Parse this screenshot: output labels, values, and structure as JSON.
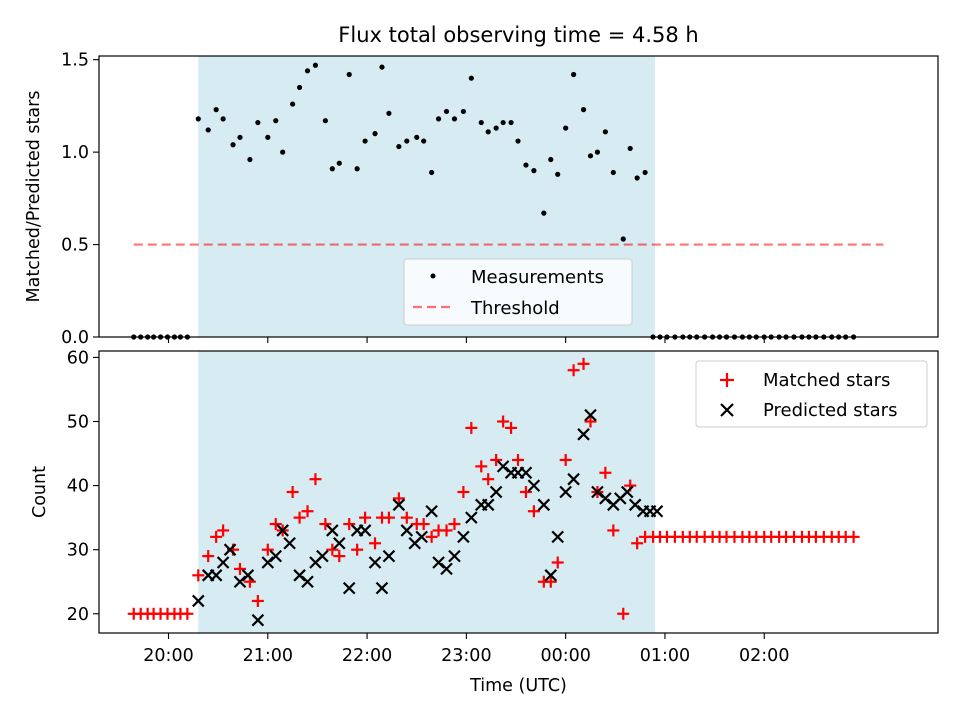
{
  "colors": {
    "band": "#add8e6",
    "threshold": "#ff0000",
    "matched": "#ff0000",
    "predicted": "#000000",
    "measurement": "#000000"
  },
  "chart_data": [
    {
      "type": "scatter",
      "title": "Flux total observing time = 4.58 h",
      "xlabel": "",
      "ylabel": "Matched/Predicted stars",
      "xlim": [
        -0.7,
        7.75
      ],
      "ylim": [
        0,
        1.52
      ],
      "yticks": [
        0.0,
        0.5,
        1.0,
        1.5
      ],
      "ytick_labels": [
        "0.0",
        "0.5",
        "1.0",
        "1.5"
      ],
      "xticks": [
        0,
        1,
        2,
        3,
        4,
        5,
        6
      ],
      "observing_band": [
        0.3,
        4.9
      ],
      "legend": {
        "position": "lower-center",
        "entries": [
          "Measurements",
          "Threshold"
        ]
      },
      "threshold": {
        "name": "Threshold",
        "value": 0.5,
        "x": [
          -0.35,
          7.2
        ]
      },
      "series": [
        {
          "name": "Measurements",
          "x": [
            -0.35,
            -0.28,
            -0.21,
            -0.15,
            -0.08,
            -0.01,
            0.06,
            0.12,
            0.19,
            0.3,
            0.4,
            0.48,
            0.55,
            0.65,
            0.72,
            0.82,
            0.9,
            1.0,
            1.08,
            1.15,
            1.25,
            1.32,
            1.4,
            1.48,
            1.58,
            1.65,
            1.72,
            1.82,
            1.9,
            1.98,
            2.08,
            2.15,
            2.22,
            2.32,
            2.4,
            2.5,
            2.57,
            2.65,
            2.72,
            2.8,
            2.88,
            2.97,
            3.05,
            3.15,
            3.22,
            3.3,
            3.37,
            3.45,
            3.52,
            3.6,
            3.68,
            3.78,
            3.85,
            3.92,
            4.0,
            4.08,
            4.18,
            4.25,
            4.32,
            4.4,
            4.48,
            4.58,
            4.65,
            4.72,
            4.8,
            4.88,
            4.95,
            5.02,
            5.1,
            5.18,
            5.25,
            5.32,
            5.4,
            5.48,
            5.55,
            5.62,
            5.7,
            5.78,
            5.85,
            5.92,
            6.0,
            6.07,
            6.15,
            6.22,
            6.3,
            6.38,
            6.45,
            6.52,
            6.6,
            6.68,
            6.75,
            6.82,
            6.9
          ],
          "y": [
            0,
            0,
            0,
            0,
            0,
            0,
            0,
            0,
            0,
            1.18,
            1.12,
            1.23,
            1.18,
            1.04,
            1.08,
            0.96,
            1.16,
            1.08,
            1.17,
            1.0,
            1.26,
            1.35,
            1.44,
            1.47,
            1.17,
            0.91,
            0.94,
            1.42,
            0.91,
            1.06,
            1.1,
            1.46,
            1.21,
            1.03,
            1.06,
            1.08,
            1.06,
            0.89,
            1.18,
            1.22,
            1.18,
            1.22,
            1.4,
            1.16,
            1.11,
            1.13,
            1.16,
            1.16,
            1.06,
            0.93,
            0.9,
            0.67,
            0.96,
            0.88,
            1.13,
            1.42,
            1.23,
            0.98,
            1.0,
            1.11,
            0.89,
            0.53,
            1.02,
            0.86,
            0.89,
            0,
            0,
            0,
            0,
            0,
            0,
            0,
            0,
            0,
            0,
            0,
            0,
            0,
            0,
            0,
            0,
            0,
            0,
            0,
            0,
            0,
            0,
            0,
            0,
            0,
            0,
            0,
            0
          ]
        }
      ]
    },
    {
      "type": "scatter",
      "title": "",
      "xlabel": "Time (UTC)",
      "ylabel": "Count",
      "xlim": [
        -0.7,
        7.75
      ],
      "ylim": [
        17,
        61
      ],
      "yticks": [
        20,
        30,
        40,
        50,
        60
      ],
      "ytick_labels": [
        "20",
        "30",
        "40",
        "50",
        "60"
      ],
      "xticks": [
        0,
        1,
        2,
        3,
        4,
        5,
        6
      ],
      "xtick_labels": [
        "20:00",
        "21:00",
        "22:00",
        "23:00",
        "00:00",
        "01:00",
        "02:00"
      ],
      "observing_band": [
        0.3,
        4.9
      ],
      "legend": {
        "position": "top-right",
        "entries": [
          "Matched stars",
          "Predicted stars"
        ]
      },
      "series": [
        {
          "name": "Matched stars",
          "x": [
            -0.35,
            -0.28,
            -0.21,
            -0.15,
            -0.08,
            -0.01,
            0.06,
            0.12,
            0.19,
            0.3,
            0.4,
            0.48,
            0.55,
            0.65,
            0.72,
            0.82,
            0.9,
            1.0,
            1.08,
            1.15,
            1.25,
            1.32,
            1.4,
            1.48,
            1.58,
            1.65,
            1.72,
            1.82,
            1.9,
            1.98,
            2.08,
            2.15,
            2.22,
            2.32,
            2.4,
            2.5,
            2.57,
            2.65,
            2.72,
            2.8,
            2.88,
            2.97,
            3.05,
            3.15,
            3.22,
            3.3,
            3.37,
            3.45,
            3.52,
            3.6,
            3.68,
            3.78,
            3.85,
            3.92,
            4.0,
            4.08,
            4.18,
            4.25,
            4.32,
            4.4,
            4.48,
            4.58,
            4.65,
            4.72,
            4.8,
            4.88,
            4.95,
            5.02,
            5.1,
            5.18,
            5.25,
            5.32,
            5.4,
            5.48,
            5.55,
            5.62,
            5.7,
            5.78,
            5.85,
            5.92,
            6.0,
            6.07,
            6.15,
            6.22,
            6.3,
            6.38,
            6.45,
            6.52,
            6.6,
            6.68,
            6.75,
            6.82,
            6.9
          ],
          "y": [
            20,
            20,
            20,
            20,
            20,
            20,
            20,
            20,
            20,
            26,
            29,
            32,
            33,
            30,
            27,
            25,
            22,
            30,
            34,
            33,
            39,
            35,
            36,
            41,
            34,
            30,
            29,
            34,
            30,
            35,
            31,
            35,
            35,
            38,
            35,
            34,
            34,
            32,
            33,
            33,
            34,
            39,
            49,
            43,
            41,
            44,
            50,
            49,
            44,
            39,
            36,
            25,
            25,
            28,
            44,
            58,
            59,
            50,
            39,
            42,
            33,
            20,
            40,
            31,
            32,
            32,
            32,
            32,
            32,
            32,
            32,
            32,
            32,
            32,
            32,
            32,
            32,
            32,
            32,
            32,
            32,
            32,
            32,
            32,
            32,
            32,
            32,
            32,
            32,
            32,
            32,
            32,
            32
          ]
        },
        {
          "name": "Predicted stars",
          "x": [
            0.3,
            0.4,
            0.48,
            0.55,
            0.62,
            0.72,
            0.8,
            0.9,
            1.0,
            1.08,
            1.15,
            1.22,
            1.32,
            1.4,
            1.48,
            1.55,
            1.65,
            1.72,
            1.82,
            1.9,
            1.98,
            2.08,
            2.15,
            2.22,
            2.32,
            2.4,
            2.48,
            2.55,
            2.65,
            2.72,
            2.8,
            2.88,
            2.97,
            3.05,
            3.15,
            3.22,
            3.3,
            3.37,
            3.45,
            3.52,
            3.6,
            3.68,
            3.78,
            3.85,
            3.92,
            4.0,
            4.08,
            4.18,
            4.25,
            4.32,
            4.4,
            4.48,
            4.55,
            4.62,
            4.7,
            4.78,
            4.85,
            4.92
          ],
          "y": [
            22,
            26,
            26,
            28,
            30,
            25,
            26,
            19,
            28,
            29,
            33,
            31,
            26,
            25,
            28,
            29,
            33,
            31,
            24,
            33,
            33,
            28,
            24,
            29,
            37,
            33,
            31,
            32,
            36,
            28,
            27,
            29,
            32,
            35,
            37,
            37,
            39,
            43,
            42,
            42,
            42,
            40,
            37,
            26,
            32,
            39,
            41,
            48,
            51,
            39,
            38,
            37,
            38,
            39,
            37,
            36,
            36,
            36
          ]
        }
      ]
    }
  ]
}
